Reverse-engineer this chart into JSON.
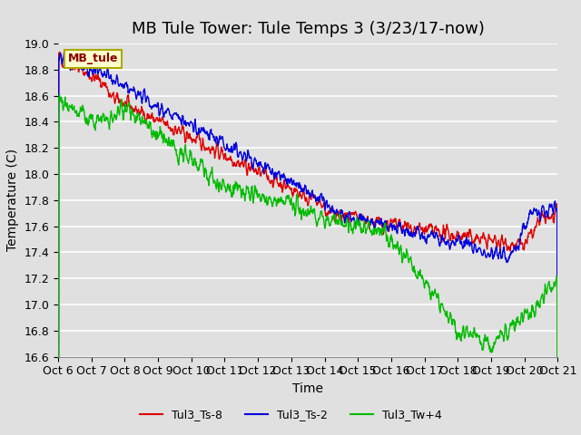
{
  "title": "MB Tule Tower: Tule Temps 3 (3/23/17-now)",
  "ylabel": "Temperature (C)",
  "xlabel": "Time",
  "ylim": [
    16.6,
    19.0
  ],
  "xlim": [
    0,
    15
  ],
  "yticks": [
    16.6,
    16.8,
    17.0,
    17.2,
    17.4,
    17.6,
    17.8,
    18.0,
    18.2,
    18.4,
    18.6,
    18.8,
    19.0
  ],
  "xtick_labels": [
    "Oct 6",
    "Oct 7",
    "Oct 8",
    "Oct 9",
    "Oct 10",
    "Oct 11",
    "Oct 12",
    "Oct 13",
    "Oct 14",
    "Oct 15",
    "Oct 16",
    "Oct 17",
    "Oct 18",
    "Oct 19",
    "Oct 20",
    "Oct 21"
  ],
  "bg_color": "#e0e0e0",
  "plot_bg": "#e0e0e0",
  "grid_color": "#ffffff",
  "legend_box_label": "MB_tule",
  "legend_box_facecolor": "#ffffcc",
  "legend_box_edgecolor": "#aaaa00",
  "series": [
    {
      "label": "Tul3_Ts-8",
      "color": "#dd0000"
    },
    {
      "label": "Tul3_Ts-2",
      "color": "#0000dd"
    },
    {
      "label": "Tul3_Tw+4",
      "color": "#00bb00"
    }
  ],
  "title_fontsize": 13,
  "axis_label_fontsize": 10,
  "tick_fontsize": 9,
  "legend_fontsize": 9
}
